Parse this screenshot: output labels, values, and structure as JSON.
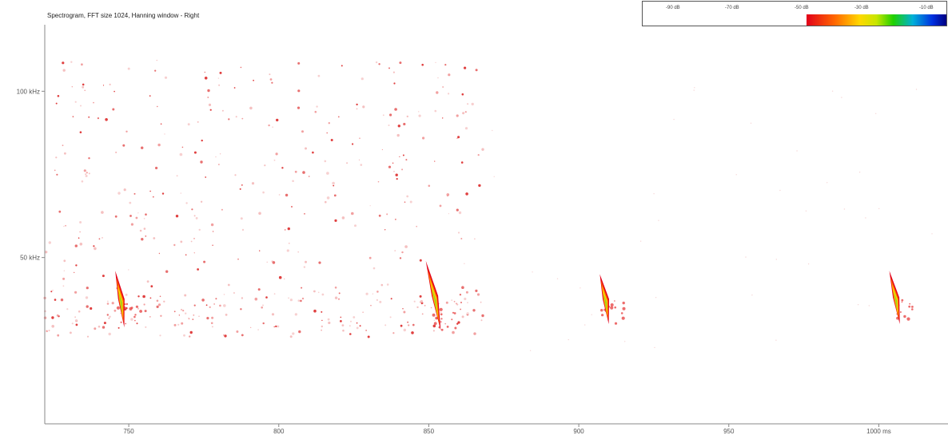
{
  "chart_data": {
    "type": "heatmap",
    "title": "Spectrogram, FFT size 1024, Hanning window - Right",
    "x_tick_labels": [
      "750",
      "800",
      "850",
      "900",
      "950",
      "1000 ms"
    ],
    "x_ticks": [
      750,
      800,
      850,
      900,
      950,
      1000
    ],
    "y_tick_labels": [
      "100 kHz",
      "50 kHz"
    ],
    "y_ticks": [
      100,
      50
    ],
    "xlim": [
      722,
      1022
    ],
    "ylim": [
      0,
      120
    ],
    "colorbar": {
      "labels": [
        "-90 dB",
        "-70 dB",
        "-50 dB",
        "-30 dB",
        "-10 dB"
      ],
      "colors": [
        "#e2001a",
        "#ff6600",
        "#ffd800",
        "#20d000",
        "#00b0d8",
        "#0030e0",
        "#000080"
      ]
    },
    "calls": [
      {
        "start_ms": 745.5,
        "end_ms": 748.5,
        "f_start_khz": 46,
        "f_end_khz": 29
      },
      {
        "start_ms": 849.0,
        "end_ms": 854.0,
        "f_start_khz": 49,
        "f_end_khz": 28
      },
      {
        "start_ms": 907.0,
        "end_ms": 910.0,
        "f_start_khz": 45,
        "f_end_khz": 30
      },
      {
        "start_ms": 1003.5,
        "end_ms": 1007.0,
        "f_start_khz": 46,
        "f_end_khz": 30
      }
    ],
    "noise_region_ms": [
      722,
      868
    ]
  }
}
